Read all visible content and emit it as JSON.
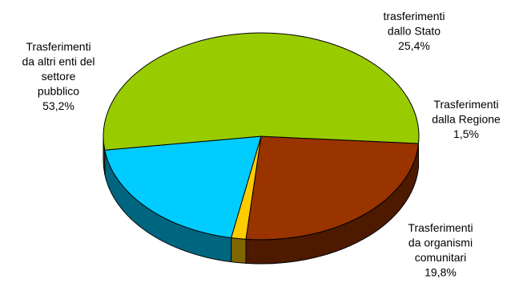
{
  "chart_data": {
    "type": "pie",
    "title": "",
    "slices": [
      {
        "label_lines": [
          "trasferimenti",
          "dallo Stato"
        ],
        "value_label": "25,4%",
        "value": 25.4,
        "color": "#993300",
        "side_color": "#4d1a00"
      },
      {
        "label_lines": [
          "Trasferimenti",
          "dalla Regione"
        ],
        "value_label": "1,5%",
        "value": 1.5,
        "color": "#ffcc00",
        "side_color": "#806600"
      },
      {
        "label_lines": [
          "Trasferimenti",
          "da organismi",
          "comunitari"
        ],
        "value_label": "19,8%",
        "value": 19.8,
        "color": "#00ccff",
        "side_color": "#006680"
      },
      {
        "label_lines": [
          "Trasferimenti",
          "da altri enti del",
          "settore",
          "pubblico"
        ],
        "value_label": "53,2%",
        "value": 53.2,
        "color": "#99cc00",
        "side_color": "#4d6600"
      }
    ]
  }
}
